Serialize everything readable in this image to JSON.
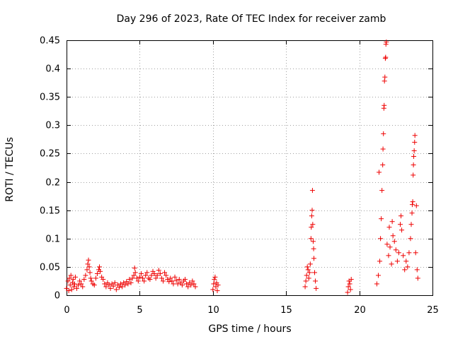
{
  "chart_data": {
    "type": "scatter",
    "title": "Day 296 of 2023, Rate Of TEC Index for receiver zamb",
    "xlabel": "GPS time / hours",
    "ylabel": "ROTI / TECUs",
    "xlim": [
      0,
      25
    ],
    "ylim": [
      0,
      0.45
    ],
    "xticks": [
      0,
      5,
      10,
      15,
      20,
      25
    ],
    "yticks": [
      0,
      0.05,
      0.1,
      0.15,
      0.2,
      0.25,
      0.3,
      0.35,
      0.4,
      0.45
    ],
    "xtick_labels": [
      "0",
      "5",
      "10",
      "15",
      "20",
      "25"
    ],
    "ytick_labels": [
      "0",
      "0.05",
      "0.1",
      "0.15",
      "0.2",
      "0.25",
      "0.3",
      "0.35",
      "0.4",
      "0.45"
    ],
    "grid": true,
    "marker": "+",
    "color": "#ee0000",
    "series": [
      {
        "name": "ROTI",
        "points": [
          [
            0.0,
            0.012
          ],
          [
            0.1,
            0.025
          ],
          [
            0.15,
            0.008
          ],
          [
            0.2,
            0.03
          ],
          [
            0.25,
            0.018
          ],
          [
            0.3,
            0.035
          ],
          [
            0.35,
            0.01
          ],
          [
            0.4,
            0.022
          ],
          [
            0.45,
            0.028
          ],
          [
            0.5,
            0.015
          ],
          [
            0.55,
            0.02
          ],
          [
            0.6,
            0.032
          ],
          [
            0.7,
            0.012
          ],
          [
            0.8,
            0.018
          ],
          [
            0.9,
            0.025
          ],
          [
            1.0,
            0.02
          ],
          [
            1.1,
            0.015
          ],
          [
            1.2,
            0.028
          ],
          [
            1.3,
            0.035
          ],
          [
            1.4,
            0.045
          ],
          [
            1.45,
            0.055
          ],
          [
            1.5,
            0.062
          ],
          [
            1.55,
            0.05
          ],
          [
            1.6,
            0.04
          ],
          [
            1.65,
            0.03
          ],
          [
            1.7,
            0.025
          ],
          [
            1.8,
            0.02
          ],
          [
            1.9,
            0.018
          ],
          [
            2.0,
            0.03
          ],
          [
            2.1,
            0.038
          ],
          [
            2.2,
            0.045
          ],
          [
            2.25,
            0.05
          ],
          [
            2.3,
            0.042
          ],
          [
            2.4,
            0.032
          ],
          [
            2.5,
            0.028
          ],
          [
            2.6,
            0.02
          ],
          [
            2.7,
            0.015
          ],
          [
            2.8,
            0.022
          ],
          [
            2.9,
            0.018
          ],
          [
            3.0,
            0.012
          ],
          [
            3.1,
            0.02
          ],
          [
            3.2,
            0.016
          ],
          [
            3.3,
            0.022
          ],
          [
            3.4,
            0.01
          ],
          [
            3.5,
            0.018
          ],
          [
            3.6,
            0.014
          ],
          [
            3.7,
            0.02
          ],
          [
            3.8,
            0.015
          ],
          [
            3.9,
            0.022
          ],
          [
            4.0,
            0.018
          ],
          [
            4.1,
            0.024
          ],
          [
            4.2,
            0.02
          ],
          [
            4.3,
            0.028
          ],
          [
            4.4,
            0.022
          ],
          [
            4.5,
            0.03
          ],
          [
            4.6,
            0.035
          ],
          [
            4.65,
            0.048
          ],
          [
            4.7,
            0.04
          ],
          [
            4.8,
            0.03
          ],
          [
            4.9,
            0.025
          ],
          [
            5.0,
            0.032
          ],
          [
            5.1,
            0.038
          ],
          [
            5.2,
            0.03
          ],
          [
            5.3,
            0.025
          ],
          [
            5.4,
            0.035
          ],
          [
            5.5,
            0.04
          ],
          [
            5.6,
            0.03
          ],
          [
            5.7,
            0.028
          ],
          [
            5.8,
            0.035
          ],
          [
            5.9,
            0.042
          ],
          [
            6.0,
            0.038
          ],
          [
            6.1,
            0.03
          ],
          [
            6.2,
            0.035
          ],
          [
            6.3,
            0.044
          ],
          [
            6.4,
            0.038
          ],
          [
            6.5,
            0.03
          ],
          [
            6.6,
            0.025
          ],
          [
            6.7,
            0.04
          ],
          [
            6.8,
            0.035
          ],
          [
            6.9,
            0.028
          ],
          [
            7.0,
            0.024
          ],
          [
            7.1,
            0.03
          ],
          [
            7.2,
            0.025
          ],
          [
            7.3,
            0.02
          ],
          [
            7.4,
            0.032
          ],
          [
            7.5,
            0.026
          ],
          [
            7.6,
            0.02
          ],
          [
            7.7,
            0.028
          ],
          [
            7.8,
            0.022
          ],
          [
            7.9,
            0.018
          ],
          [
            8.0,
            0.025
          ],
          [
            8.1,
            0.028
          ],
          [
            8.2,
            0.02
          ],
          [
            8.3,
            0.015
          ],
          [
            8.4,
            0.022
          ],
          [
            8.5,
            0.018
          ],
          [
            8.6,
            0.025
          ],
          [
            8.7,
            0.02
          ],
          [
            8.8,
            0.015
          ],
          [
            10.0,
            0.01
          ],
          [
            10.05,
            0.02
          ],
          [
            10.1,
            0.028
          ],
          [
            10.15,
            0.032
          ],
          [
            10.2,
            0.015
          ],
          [
            10.25,
            0.022
          ],
          [
            10.3,
            0.008
          ],
          [
            10.35,
            0.018
          ],
          [
            16.3,
            0.015
          ],
          [
            16.35,
            0.025
          ],
          [
            16.4,
            0.035
          ],
          [
            16.45,
            0.05
          ],
          [
            16.5,
            0.045
          ],
          [
            16.55,
            0.03
          ],
          [
            16.6,
            0.04
          ],
          [
            16.65,
            0.055
          ],
          [
            16.7,
            0.1
          ],
          [
            16.72,
            0.12
          ],
          [
            16.75,
            0.14
          ],
          [
            16.78,
            0.15
          ],
          [
            16.8,
            0.185
          ],
          [
            16.82,
            0.125
          ],
          [
            16.85,
            0.095
          ],
          [
            16.88,
            0.082
          ],
          [
            16.9,
            0.065
          ],
          [
            16.95,
            0.04
          ],
          [
            17.0,
            0.025
          ],
          [
            17.05,
            0.012
          ],
          [
            19.2,
            0.005
          ],
          [
            19.25,
            0.015
          ],
          [
            19.3,
            0.025
          ],
          [
            19.35,
            0.02
          ],
          [
            19.4,
            0.01
          ],
          [
            19.45,
            0.028
          ],
          [
            21.2,
            0.02
          ],
          [
            21.3,
            0.035
          ],
          [
            21.35,
            0.217
          ],
          [
            21.4,
            0.06
          ],
          [
            21.45,
            0.1
          ],
          [
            21.5,
            0.135
          ],
          [
            21.55,
            0.185
          ],
          [
            21.6,
            0.23
          ],
          [
            21.62,
            0.258
          ],
          [
            21.65,
            0.285
          ],
          [
            21.68,
            0.33
          ],
          [
            21.7,
            0.335
          ],
          [
            21.72,
            0.378
          ],
          [
            21.75,
            0.385
          ],
          [
            21.78,
            0.418
          ],
          [
            21.8,
            0.42
          ],
          [
            21.82,
            0.443
          ],
          [
            21.85,
            0.447
          ],
          [
            21.9,
            0.09
          ],
          [
            22.0,
            0.07
          ],
          [
            22.05,
            0.12
          ],
          [
            22.1,
            0.085
          ],
          [
            22.2,
            0.055
          ],
          [
            22.25,
            0.13
          ],
          [
            22.3,
            0.105
          ],
          [
            22.4,
            0.095
          ],
          [
            22.5,
            0.08
          ],
          [
            22.6,
            0.06
          ],
          [
            22.7,
            0.075
          ],
          [
            22.8,
            0.125
          ],
          [
            22.85,
            0.14
          ],
          [
            22.9,
            0.115
          ],
          [
            23.0,
            0.07
          ],
          [
            23.1,
            0.045
          ],
          [
            23.2,
            0.06
          ],
          [
            23.3,
            0.05
          ],
          [
            23.4,
            0.075
          ],
          [
            23.5,
            0.1
          ],
          [
            23.55,
            0.125
          ],
          [
            23.6,
            0.145
          ],
          [
            23.62,
            0.16
          ],
          [
            23.65,
            0.165
          ],
          [
            23.68,
            0.212
          ],
          [
            23.7,
            0.23
          ],
          [
            23.72,
            0.245
          ],
          [
            23.75,
            0.255
          ],
          [
            23.78,
            0.27
          ],
          [
            23.8,
            0.282
          ],
          [
            23.85,
            0.075
          ],
          [
            23.9,
            0.158
          ],
          [
            23.95,
            0.045
          ],
          [
            24.0,
            0.03
          ]
        ]
      }
    ]
  }
}
